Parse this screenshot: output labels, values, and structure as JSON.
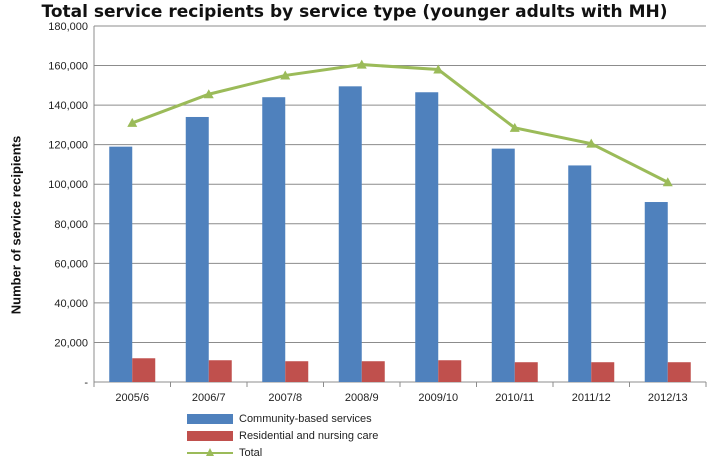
{
  "chart_data": {
    "type": "bar",
    "title": "Total service recipients by service type (younger adults with MH)",
    "ylabel": "Number of service recipients",
    "xlabel": "",
    "categories": [
      "2005/6",
      "2006/7",
      "2007/8",
      "2008/9",
      "2009/10",
      "2010/11",
      "2011/12",
      "2012/13"
    ],
    "ylim": [
      0,
      180000
    ],
    "yticks": [
      0,
      20000,
      40000,
      60000,
      80000,
      100000,
      120000,
      140000,
      160000,
      180000
    ],
    "ytick_labels": [
      "-",
      "20,000",
      "40,000",
      "60,000",
      "80,000",
      "100,000",
      "120,000",
      "140,000",
      "160,000",
      "180,000"
    ],
    "series": [
      {
        "name": "Community-based services",
        "type": "bar",
        "color": "#4F81BD",
        "values": [
          119000,
          134000,
          144000,
          149500,
          146500,
          118000,
          109500,
          91000
        ]
      },
      {
        "name": "Residential and nursing care",
        "type": "bar",
        "color": "#C0504D",
        "values": [
          12000,
          11000,
          10500,
          10500,
          11000,
          10000,
          10000,
          10000
        ]
      },
      {
        "name": "Total",
        "type": "line",
        "marker": "triangle",
        "color": "#9BBB59",
        "values": [
          131000,
          145500,
          155000,
          160500,
          158000,
          128500,
          120500,
          101000
        ]
      }
    ],
    "grid": "horizontal",
    "legend_position": "bottom"
  }
}
